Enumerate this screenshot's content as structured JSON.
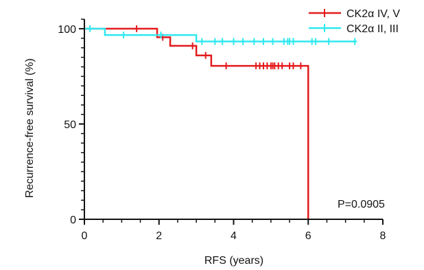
{
  "chart_data": {
    "type": "line",
    "xlabel": "RFS (years)",
    "ylabel": "Recurrence-free survival (%)",
    "xlim": [
      0,
      8
    ],
    "ylim": [
      0,
      105
    ],
    "x_ticks": [
      0,
      2,
      4,
      6,
      8
    ],
    "y_ticks": [
      0,
      50,
      100
    ],
    "x_tick_labels": [
      "0",
      "2",
      "4",
      "6",
      "8"
    ],
    "y_tick_labels": [
      "0",
      "50",
      "100"
    ],
    "grid": false,
    "legend_position": "top-right",
    "annotation": "P=0.0905",
    "series": [
      {
        "name": "CK2α IV, V",
        "color": "#e31a1c",
        "steps": [
          [
            0,
            100
          ],
          [
            1.95,
            95.5
          ],
          [
            2.3,
            91
          ],
          [
            3.0,
            86
          ],
          [
            3.4,
            80.5
          ],
          [
            6.0,
            0
          ]
        ],
        "censor_x": [
          1.4,
          2.1,
          2.9,
          3.25,
          3.8,
          4.6,
          4.7,
          4.8,
          4.9,
          5.0,
          5.05,
          5.1,
          5.2,
          5.3,
          5.5,
          5.6,
          5.8
        ]
      },
      {
        "name": "CK2α II, III",
        "color": "#2ee8f0",
        "steps": [
          [
            0,
            100
          ],
          [
            0.55,
            96.7
          ],
          [
            3.0,
            93.3
          ]
        ],
        "end_x": 7.3,
        "censor_x": [
          0.15,
          1.05,
          2.05,
          3.15,
          3.5,
          3.7,
          4.0,
          4.25,
          4.55,
          4.8,
          5.05,
          5.35,
          5.45,
          5.5,
          5.6,
          6.1,
          6.2,
          6.55,
          7.25
        ]
      }
    ]
  }
}
